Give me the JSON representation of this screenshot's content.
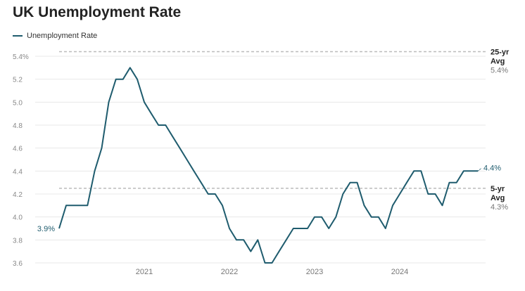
{
  "title": "UK Unemployment Rate",
  "colors": {
    "series": "#1f5c6e",
    "grid": "#e8e8e8",
    "reference": "#bbbbbb"
  },
  "chart_data": {
    "type": "line",
    "title": "UK Unemployment Rate",
    "xlabel": "",
    "ylabel": "",
    "legend_position": "top-left",
    "grid": true,
    "ylim": [
      3.6,
      5.4
    ],
    "xlim": [
      2020.0,
      2025.0
    ],
    "y_ticks": [
      "3.6",
      "3.8",
      "4.0",
      "4.2",
      "4.4",
      "4.6",
      "4.8",
      "5.0",
      "5.2",
      "5.4%"
    ],
    "x_ticks": [
      "2021",
      "2022",
      "2023",
      "2024"
    ],
    "series": [
      {
        "name": "Unemployment Rate",
        "x": [
          2020.0,
          2020.083,
          2020.167,
          2020.25,
          2020.333,
          2020.417,
          2020.5,
          2020.583,
          2020.667,
          2020.75,
          2020.833,
          2020.917,
          2021.0,
          2021.083,
          2021.167,
          2021.25,
          2021.333,
          2021.417,
          2021.5,
          2021.583,
          2021.667,
          2021.75,
          2021.833,
          2021.917,
          2022.0,
          2022.083,
          2022.167,
          2022.25,
          2022.333,
          2022.417,
          2022.5,
          2022.583,
          2022.667,
          2022.75,
          2022.833,
          2022.917,
          2023.0,
          2023.083,
          2023.167,
          2023.25,
          2023.333,
          2023.417,
          2023.5,
          2023.583,
          2023.667,
          2023.75,
          2023.833,
          2023.917,
          2024.0,
          2024.083,
          2024.167,
          2024.25,
          2024.333,
          2024.417,
          2024.5,
          2024.583,
          2024.667,
          2024.75,
          2024.833,
          2024.917
        ],
        "y": [
          3.9,
          4.1,
          4.1,
          4.1,
          4.1,
          4.4,
          4.6,
          5.0,
          5.2,
          5.2,
          5.3,
          5.2,
          5.0,
          4.9,
          4.8,
          4.8,
          4.7,
          4.6,
          4.5,
          4.4,
          4.3,
          4.2,
          4.2,
          4.1,
          3.9,
          3.8,
          3.8,
          3.7,
          3.8,
          3.6,
          3.6,
          3.7,
          3.8,
          3.9,
          3.9,
          3.9,
          4.0,
          4.0,
          3.9,
          4.0,
          4.2,
          4.3,
          4.3,
          4.1,
          4.0,
          4.0,
          3.9,
          4.1,
          4.2,
          4.3,
          4.4,
          4.4,
          4.2,
          4.2,
          4.1,
          4.3,
          4.3,
          4.4,
          4.4,
          4.4
        ]
      }
    ],
    "annotations": {
      "start_label": "3.9%",
      "end_label": "4.4%",
      "reference_lines": [
        {
          "name_line1": "25-yr",
          "name_line2": "Avg",
          "value": 5.44,
          "value_label": "5.4%"
        },
        {
          "name_line1": "5-yr",
          "name_line2": "Avg",
          "value": 4.25,
          "value_label": "4.3%"
        }
      ]
    }
  }
}
